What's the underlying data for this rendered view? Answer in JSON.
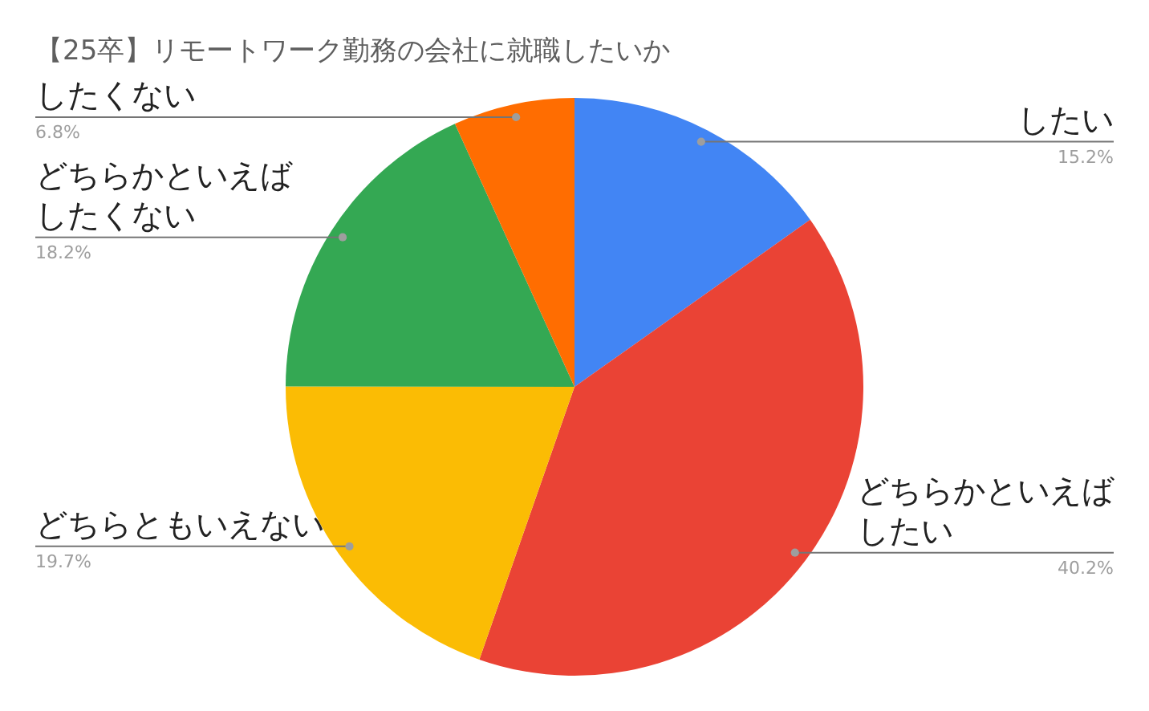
{
  "chart_data": {
    "type": "pie",
    "title": "【25卒】リモートワーク勤務の会社に就職したいか",
    "categories": [
      "したい",
      "どちらかといえばしたい",
      "どちらともいえない",
      "どちらかといえばしたくない",
      "したくない"
    ],
    "values": [
      15.2,
      40.2,
      19.7,
      18.2,
      6.8
    ],
    "colors": [
      "#4285f4",
      "#ea4335",
      "#fbbc04",
      "#34a853",
      "#ff6d01"
    ],
    "value_labels": [
      "15.2%",
      "40.2%",
      "19.7%",
      "18.2%",
      "6.8%"
    ],
    "legend": false
  }
}
